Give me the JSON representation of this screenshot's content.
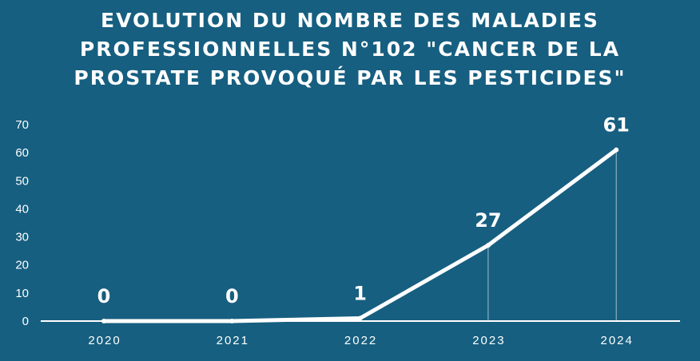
{
  "chart_data": {
    "type": "line",
    "title": "EVOLUTION DU NOMBRE DES MALADIES PROFESSIONNELLES N°102 \"CANCER DE LA PROSTATE PROVOQUÉ PAR LES PESTICIDES\"",
    "title_lines": [
      "EVOLUTION DU NOMBRE DES MALADIES",
      "PROFESSIONNELLES N°102 \"CANCER DE LA",
      "PROSTATE PROVOQUÉ PAR LES PESTICIDES\""
    ],
    "categories": [
      "2020",
      "2021",
      "2022",
      "2023",
      "2024"
    ],
    "values": [
      0,
      0,
      1,
      27,
      61
    ],
    "data_labels": [
      "0",
      "0",
      "1",
      "27",
      "61"
    ],
    "yticks": [
      0,
      10,
      20,
      30,
      40,
      50,
      60,
      70
    ],
    "ylim": [
      0,
      70
    ],
    "xlabel": "",
    "ylabel": "",
    "grid": false,
    "colors": {
      "background": "#165f80",
      "line": "#ffffff"
    }
  }
}
